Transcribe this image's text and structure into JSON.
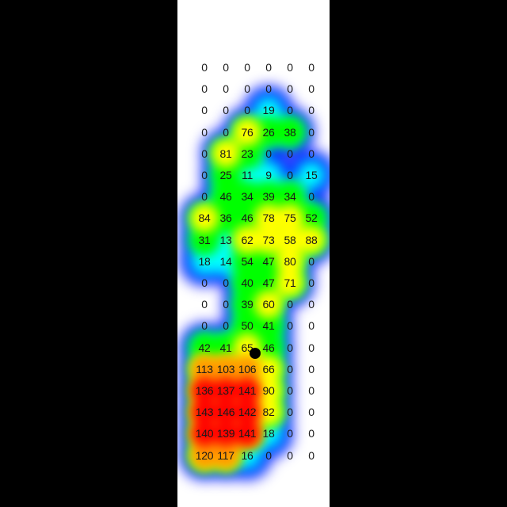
{
  "chart_data": {
    "type": "heatmap",
    "rows": 19,
    "cols": 6,
    "values": [
      [
        0,
        0,
        0,
        0,
        0,
        0
      ],
      [
        0,
        0,
        0,
        0,
        0,
        0
      ],
      [
        0,
        0,
        0,
        19,
        0,
        0
      ],
      [
        0,
        0,
        76,
        26,
        38,
        0
      ],
      [
        0,
        81,
        23,
        0,
        0,
        0
      ],
      [
        0,
        25,
        11,
        9,
        0,
        15
      ],
      [
        0,
        46,
        34,
        39,
        34,
        0
      ],
      [
        84,
        36,
        46,
        78,
        75,
        52
      ],
      [
        31,
        13,
        62,
        73,
        58,
        88
      ],
      [
        18,
        14,
        54,
        47,
        80,
        0
      ],
      [
        0,
        0,
        40,
        47,
        71,
        0
      ],
      [
        0,
        0,
        39,
        60,
        0,
        0
      ],
      [
        0,
        0,
        50,
        41,
        0,
        0
      ],
      [
        42,
        41,
        65,
        46,
        0,
        0
      ],
      [
        113,
        103,
        106,
        66,
        0,
        0
      ],
      [
        136,
        137,
        141,
        90,
        0,
        0
      ],
      [
        143,
        146,
        142,
        82,
        0,
        0
      ],
      [
        140,
        139,
        141,
        18,
        0,
        0
      ],
      [
        120,
        117,
        16,
        0,
        0,
        0
      ]
    ],
    "marker": {
      "row": 13,
      "col": 2
    },
    "colorscale": [
      "#0000ff",
      "#00ffff",
      "#00ff00",
      "#ffff00",
      "#ff0000"
    ],
    "vmax": 146,
    "background": "#000000",
    "panel_color": "#ffffff"
  }
}
